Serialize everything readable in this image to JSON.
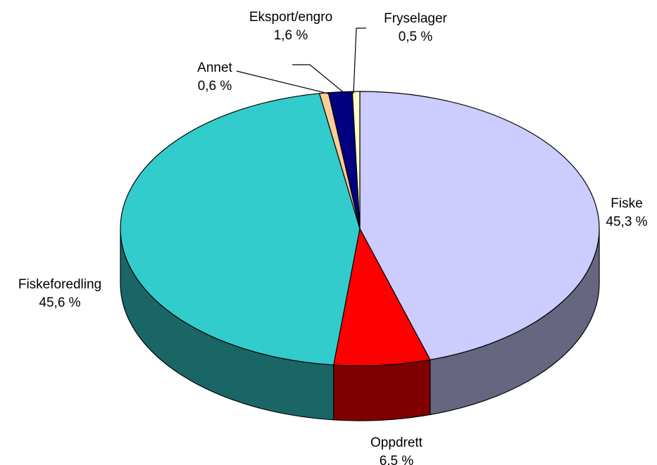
{
  "chart_data": {
    "type": "pie3d",
    "categories": [
      "Fiske",
      "Oppdrett",
      "Fiskeforedling",
      "Annet",
      "Eksport/engro",
      "Fryselager"
    ],
    "values": [
      45.3,
      6.5,
      45.6,
      0.6,
      1.6,
      0.5
    ],
    "value_labels": [
      "45,3 %",
      "6,5 %",
      "45,6 %",
      "0,6 %",
      "1,6 %",
      "0,5 %"
    ],
    "colors": [
      "#ccccff",
      "#ff0000",
      "#33cccc",
      "#ffcc99",
      "#000080",
      "#ffffcc"
    ]
  }
}
